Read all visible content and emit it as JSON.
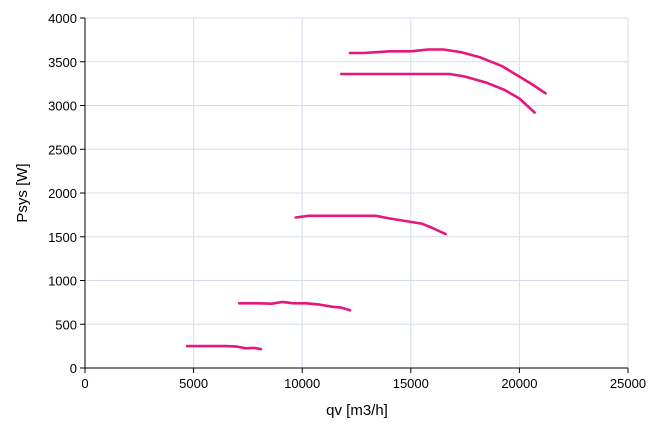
{
  "chart_data": {
    "type": "line",
    "xlabel": "qv [m3/h]",
    "ylabel": "Psys [W]",
    "xlim": [
      0,
      25000
    ],
    "ylim": [
      0,
      4000
    ],
    "x_ticks": [
      0,
      5000,
      10000,
      15000,
      20000,
      25000
    ],
    "y_ticks": [
      0,
      500,
      1000,
      1500,
      2000,
      2500,
      3000,
      3500,
      4000
    ],
    "x_tick_labels": [
      "0",
      "5000",
      "10000",
      "15000",
      "20000",
      "25000"
    ],
    "y_tick_labels": [
      "0",
      "500",
      "1000",
      "1500",
      "2000",
      "2500",
      "3000",
      "3500",
      "4000"
    ],
    "grid": true,
    "line_color": "#e6177a",
    "grid_color": "#d6dde8",
    "series": [
      {
        "points": [
          [
            4700,
            250
          ],
          [
            5500,
            250
          ],
          [
            6500,
            250
          ],
          [
            7000,
            245
          ],
          [
            7400,
            225
          ],
          [
            7800,
            230
          ],
          [
            8100,
            215
          ]
        ]
      },
      {
        "points": [
          [
            7100,
            740
          ],
          [
            8000,
            740
          ],
          [
            8600,
            735
          ],
          [
            9100,
            755
          ],
          [
            9600,
            740
          ],
          [
            10200,
            740
          ],
          [
            10800,
            725
          ],
          [
            11400,
            700
          ],
          [
            11800,
            690
          ],
          [
            12200,
            660
          ]
        ]
      },
      {
        "points": [
          [
            9700,
            1720
          ],
          [
            10300,
            1740
          ],
          [
            11000,
            1740
          ],
          [
            12000,
            1740
          ],
          [
            13400,
            1740
          ],
          [
            14000,
            1710
          ],
          [
            15000,
            1670
          ],
          [
            15500,
            1650
          ],
          [
            16000,
            1600
          ],
          [
            16600,
            1530
          ]
        ]
      },
      {
        "points": [
          [
            11800,
            3360
          ],
          [
            13000,
            3360
          ],
          [
            14500,
            3360
          ],
          [
            16000,
            3360
          ],
          [
            16800,
            3360
          ],
          [
            17500,
            3330
          ],
          [
            18500,
            3260
          ],
          [
            19300,
            3180
          ],
          [
            20000,
            3080
          ],
          [
            20700,
            2920
          ]
        ]
      },
      {
        "points": [
          [
            12200,
            3600
          ],
          [
            12800,
            3600
          ],
          [
            13500,
            3610
          ],
          [
            14000,
            3620
          ],
          [
            15000,
            3620
          ],
          [
            15800,
            3640
          ],
          [
            16500,
            3640
          ],
          [
            17300,
            3610
          ],
          [
            18200,
            3550
          ],
          [
            19200,
            3450
          ],
          [
            20000,
            3330
          ],
          [
            20600,
            3240
          ],
          [
            21200,
            3140
          ]
        ]
      }
    ]
  }
}
